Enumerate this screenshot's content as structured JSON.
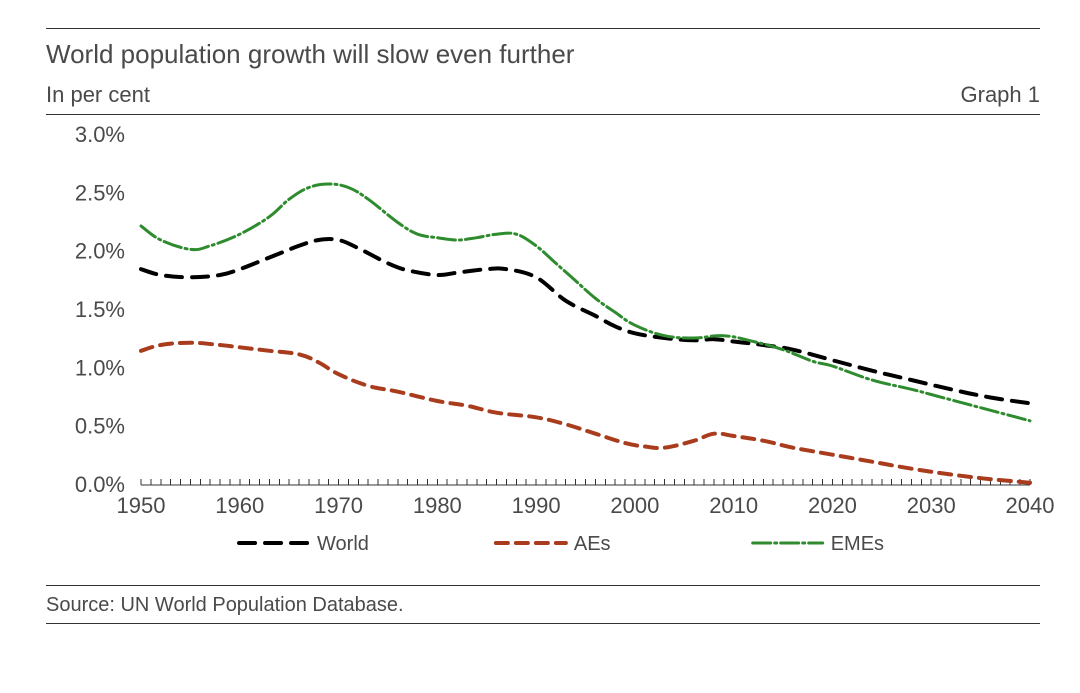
{
  "header": {
    "title": "World population growth will slow even further",
    "title_fontsize": 26,
    "title_color": "#4a4a4a",
    "subtitle_left": "In per cent",
    "subtitle_right": "Graph 1",
    "subtitle_fontsize": 22,
    "subtitle_color": "#4a4a4a"
  },
  "rules": {
    "color": "#333333"
  },
  "chart": {
    "type": "line",
    "background_color": "#ffffff",
    "x": {
      "min": 1950,
      "max": 2040,
      "tick_step": 10,
      "tick_labels": [
        "1950",
        "1960",
        "1970",
        "1980",
        "1990",
        "2000",
        "2010",
        "2020",
        "2030",
        "2040"
      ],
      "label_fontsize": 22,
      "axis_color": "#333333",
      "minor_tick_step": 1,
      "minor_tick_length": 6
    },
    "y": {
      "min": 0.0,
      "max": 3.0,
      "tick_step": 0.5,
      "tick_labels": [
        "0.0%",
        "0.5%",
        "1.0%",
        "1.5%",
        "2.0%",
        "2.5%",
        "3.0%"
      ],
      "label_fontsize": 22,
      "axis_color": "#333333"
    },
    "series": [
      {
        "name": "World",
        "color": "#000000",
        "stroke_width": 4,
        "dash": "16 10",
        "points": [
          [
            1950,
            1.85
          ],
          [
            1952,
            1.8
          ],
          [
            1955,
            1.78
          ],
          [
            1958,
            1.8
          ],
          [
            1960,
            1.85
          ],
          [
            1963,
            1.95
          ],
          [
            1966,
            2.05
          ],
          [
            1968,
            2.1
          ],
          [
            1970,
            2.1
          ],
          [
            1972,
            2.03
          ],
          [
            1975,
            1.9
          ],
          [
            1977,
            1.84
          ],
          [
            1980,
            1.8
          ],
          [
            1982,
            1.82
          ],
          [
            1985,
            1.85
          ],
          [
            1987,
            1.85
          ],
          [
            1990,
            1.78
          ],
          [
            1993,
            1.58
          ],
          [
            1996,
            1.45
          ],
          [
            1998,
            1.36
          ],
          [
            2000,
            1.3
          ],
          [
            2003,
            1.26
          ],
          [
            2006,
            1.24
          ],
          [
            2008,
            1.25
          ],
          [
            2010,
            1.23
          ],
          [
            2013,
            1.2
          ],
          [
            2016,
            1.16
          ],
          [
            2020,
            1.07
          ],
          [
            2024,
            0.98
          ],
          [
            2028,
            0.9
          ],
          [
            2032,
            0.82
          ],
          [
            2036,
            0.75
          ],
          [
            2040,
            0.7
          ]
        ]
      },
      {
        "name": "AEs",
        "color": "#aa3c1e",
        "stroke_width": 4,
        "dash": "12 8",
        "points": [
          [
            1950,
            1.15
          ],
          [
            1952,
            1.2
          ],
          [
            1955,
            1.22
          ],
          [
            1958,
            1.2
          ],
          [
            1960,
            1.18
          ],
          [
            1963,
            1.15
          ],
          [
            1966,
            1.12
          ],
          [
            1968,
            1.05
          ],
          [
            1970,
            0.95
          ],
          [
            1973,
            0.85
          ],
          [
            1976,
            0.8
          ],
          [
            1980,
            0.72
          ],
          [
            1983,
            0.68
          ],
          [
            1986,
            0.62
          ],
          [
            1990,
            0.58
          ],
          [
            1993,
            0.52
          ],
          [
            1996,
            0.44
          ],
          [
            1999,
            0.36
          ],
          [
            2001,
            0.33
          ],
          [
            2003,
            0.32
          ],
          [
            2006,
            0.38
          ],
          [
            2008,
            0.44
          ],
          [
            2010,
            0.42
          ],
          [
            2013,
            0.38
          ],
          [
            2016,
            0.32
          ],
          [
            2020,
            0.26
          ],
          [
            2024,
            0.2
          ],
          [
            2028,
            0.14
          ],
          [
            2032,
            0.09
          ],
          [
            2036,
            0.05
          ],
          [
            2040,
            0.02
          ]
        ]
      },
      {
        "name": "EMEs",
        "color": "#2e8b2e",
        "stroke_width": 3,
        "dash": "18 4 2 4",
        "points": [
          [
            1950,
            2.22
          ],
          [
            1952,
            2.1
          ],
          [
            1955,
            2.02
          ],
          [
            1957,
            2.05
          ],
          [
            1960,
            2.15
          ],
          [
            1963,
            2.3
          ],
          [
            1965,
            2.45
          ],
          [
            1967,
            2.55
          ],
          [
            1969,
            2.58
          ],
          [
            1971,
            2.55
          ],
          [
            1973,
            2.45
          ],
          [
            1976,
            2.25
          ],
          [
            1978,
            2.15
          ],
          [
            1980,
            2.12
          ],
          [
            1982,
            2.1
          ],
          [
            1984,
            2.12
          ],
          [
            1986,
            2.15
          ],
          [
            1988,
            2.15
          ],
          [
            1990,
            2.05
          ],
          [
            1992,
            1.9
          ],
          [
            1994,
            1.75
          ],
          [
            1996,
            1.6
          ],
          [
            1998,
            1.48
          ],
          [
            2000,
            1.37
          ],
          [
            2003,
            1.28
          ],
          [
            2006,
            1.26
          ],
          [
            2009,
            1.28
          ],
          [
            2012,
            1.23
          ],
          [
            2015,
            1.16
          ],
          [
            2018,
            1.06
          ],
          [
            2020,
            1.02
          ],
          [
            2024,
            0.9
          ],
          [
            2028,
            0.82
          ],
          [
            2032,
            0.73
          ],
          [
            2036,
            0.64
          ],
          [
            2040,
            0.55
          ]
        ]
      }
    ],
    "legend": {
      "items": [
        "World",
        "AEs",
        "EMEs"
      ],
      "fontsize": 20,
      "color": "#4a4a4a",
      "sample_colors": [
        "#000000",
        "#aa3c1e",
        "#2e8b2e"
      ],
      "sample_dashes": [
        "16 10",
        "12 8",
        "18 4 2 4"
      ]
    }
  },
  "footer": {
    "text": "Source: UN World Population Database.",
    "fontsize": 20,
    "color": "#4a4a4a"
  }
}
